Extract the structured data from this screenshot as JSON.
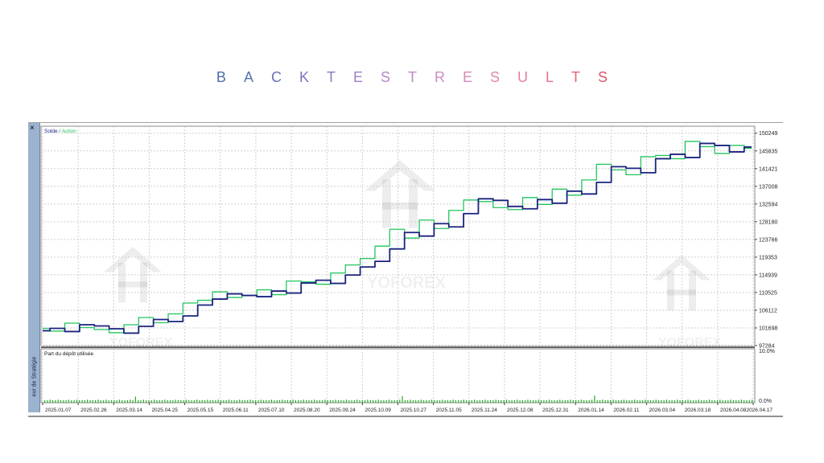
{
  "title_letters": [
    "B",
    "A",
    "C",
    "K",
    "T",
    "E",
    "S",
    "T",
    "R",
    "E",
    "S",
    "U",
    "L",
    "T",
    "S"
  ],
  "title_colors": [
    "#4a6fa8",
    "#5674b0",
    "#6a73b8",
    "#7d74bb",
    "#9079c0",
    "#a27fc6",
    "#b386c8",
    "#c08ac6",
    "#cc8cc0",
    "#d68cb8",
    "#de88ad",
    "#e27f9e",
    "#e4738d",
    "#e4667c",
    "#e0566a"
  ],
  "panel": {
    "side_label": "eur de Stratégie",
    "close_glyph": "×"
  },
  "colors": {
    "balance": "#1a237e",
    "equity": "#22c55e",
    "usage_bars": "#22aa22",
    "grid": "#cfcfcf"
  },
  "watermark_text": "YOFOREX",
  "chart_data": [
    {
      "type": "line",
      "legend": [
        "Solde",
        "Action"
      ],
      "legend_separator": " / ",
      "ylim": [
        97284,
        152000
      ],
      "yticks": [
        150249,
        145835,
        141421,
        137008,
        132594,
        128180,
        123766,
        119353,
        114939,
        110525,
        106112,
        101698,
        97284
      ],
      "x_labels": [
        "2025.01.07",
        "2025.02.26",
        "2025.03.14",
        "2025.04.25",
        "2025.05.15",
        "2025.06.11",
        "2025.07.10",
        "2025.08.20",
        "2025.09.24",
        "2025.10.09",
        "2025.10.27",
        "2025.11.05",
        "2025.11.24",
        "2025.12.08",
        "2025.12.31",
        "2026.01.14",
        "2026.02.11",
        "2026.03.04",
        "2026.03.18",
        "2026.04.08",
        "2026.04.17"
      ],
      "series": [
        {
          "name": "Solde",
          "values": [
            101000,
            101600,
            100800,
            102500,
            102200,
            101500,
            100400,
            102100,
            103800,
            103300,
            104700,
            107400,
            108900,
            110200,
            109800,
            109500,
            110900,
            110400,
            112900,
            113600,
            112800,
            114900,
            116900,
            118300,
            121400,
            125500,
            124600,
            127700,
            126900,
            130200,
            133900,
            133500,
            132000,
            131400,
            133700,
            132800,
            135800,
            135100,
            138000,
            141900,
            141500,
            140400,
            143900,
            145000,
            144200,
            147700,
            147200,
            145600,
            146800
          ]
        },
        {
          "name": "Action",
          "values": [
            101600,
            100900,
            102900,
            101800,
            101300,
            100500,
            102500,
            104300,
            103000,
            105200,
            107900,
            108600,
            110700,
            109300,
            109800,
            111200,
            110000,
            113400,
            113200,
            112600,
            115400,
            117400,
            119000,
            122100,
            126300,
            124100,
            128600,
            126500,
            131000,
            133600,
            133200,
            131700,
            131200,
            134200,
            132500,
            136300,
            134800,
            138600,
            142500,
            141100,
            139900,
            144400,
            144700,
            143900,
            148200,
            146900,
            145200,
            147200,
            146500
          ]
        }
      ]
    },
    {
      "type": "bar",
      "title": "Part du dépôt utilisée",
      "ylim": [
        0,
        10
      ],
      "yticks": [
        "10.0%",
        "0.0%"
      ],
      "values": [
        0.5,
        0.5,
        0.6,
        0.5,
        0.5,
        0.6,
        0.5,
        0.5,
        0.5,
        0.6,
        0.5,
        0.5,
        0.6,
        0.5,
        0.5,
        0.5,
        0.6,
        0.5,
        0.5,
        0.5,
        0.6,
        0.5,
        0.5,
        0.6,
        0.5,
        0.5,
        0.5,
        0.5,
        0.6,
        0.5,
        0.5,
        0.5,
        0.6,
        0.5,
        1.2,
        0.5,
        0.5,
        0.6,
        0.5,
        0.5,
        0.5,
        0.6,
        0.5,
        0.5,
        0.5,
        0.6,
        0.5,
        0.5,
        0.5,
        0.6,
        0.5,
        0.5,
        0.5,
        0.6,
        0.5,
        0.5,
        0.5,
        0.6,
        0.5,
        0.5,
        0.5,
        0.6,
        0.5,
        0.5,
        0.5,
        0.6,
        0.5,
        0.5,
        0.5,
        0.6,
        0.5,
        0.5,
        0.5,
        0.6,
        0.5,
        0.5,
        0.5,
        0.6,
        0.5,
        0.5,
        0.5,
        0.6,
        0.5,
        0.5,
        0.5,
        0.6,
        0.5,
        0.5,
        0.5,
        0.6,
        0.5,
        0.5,
        0.5,
        0.6,
        0.5,
        0.5,
        0.5,
        0.6,
        0.5,
        0.5,
        0.5,
        0.6,
        0.5,
        0.5,
        0.5,
        0.6,
        0.5,
        0.5,
        0.5,
        0.6,
        0.5,
        0.5,
        0.5,
        0.6,
        0.5,
        0.5,
        0.5,
        0.6,
        0.5,
        0.5,
        0.5,
        0.6,
        0.5,
        0.5,
        0.5,
        0.6,
        0.5,
        0.5,
        0.5,
        0.6,
        0.5,
        0.5,
        0.5,
        0.6,
        1.3,
        0.5,
        0.5,
        0.6,
        0.5,
        0.5,
        0.5,
        0.6,
        0.5,
        0.5,
        0.5,
        0.6,
        0.5,
        0.5,
        0.5,
        0.6,
        0.5,
        0.5,
        0.5,
        0.6,
        0.5,
        0.5,
        0.5,
        0.6,
        0.5,
        0.5,
        0.5,
        0.6,
        0.5,
        0.5,
        0.5,
        0.6,
        0.5,
        0.5,
        0.5,
        0.6,
        0.5,
        0.5,
        0.5,
        0.6,
        0.5,
        0.5,
        0.5,
        0.6,
        0.5,
        0.5,
        0.5,
        0.6,
        0.5,
        0.5,
        0.5,
        0.6,
        0.5,
        0.5,
        0.5,
        0.6,
        0.5,
        0.5,
        0.5,
        0.6,
        0.5,
        0.5,
        0.5,
        0.6,
        0.5,
        0.5,
        0.5,
        0.6,
        0.5,
        0.5,
        0.5,
        0.6,
        1.4,
        0.5,
        0.5,
        0.6,
        0.5,
        0.5,
        0.5,
        0.6,
        0.5,
        0.5,
        0.5,
        0.6,
        0.5,
        0.5,
        0.5,
        0.6,
        0.5,
        0.5,
        0.5,
        0.6,
        0.5,
        0.5,
        0.5,
        0.6,
        0.5,
        0.5,
        0.5,
        0.6,
        0.5,
        0.5,
        0.5,
        0.6,
        0.5,
        0.5,
        0.5,
        0.6,
        0.5,
        0.5,
        0.5,
        0.6,
        0.5,
        0.5,
        0.5,
        0.6,
        0.5,
        0.5,
        0.5,
        0.6,
        0.5,
        0.5,
        0.5,
        0.6,
        0.5,
        0.5,
        0.5,
        0.6,
        0.5,
        0.5,
        0.5,
        0.6
      ]
    }
  ]
}
